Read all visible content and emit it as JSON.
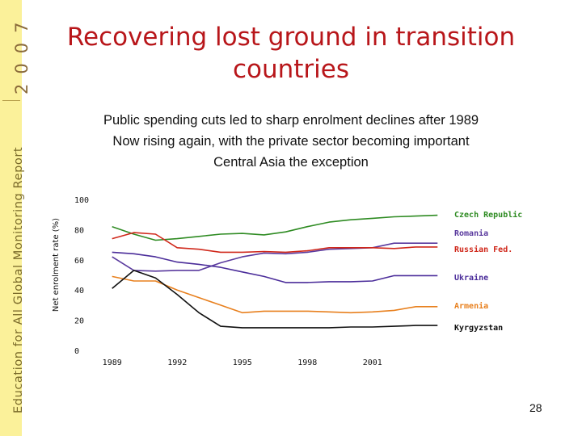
{
  "sidebar": {
    "report_name": "Education for All Global Monitoring Report",
    "year": "2007"
  },
  "slide": {
    "title": "Recovering lost ground in transition countries",
    "bullets": [
      "Public spending cuts led to sharp enrolment declines after 1989",
      "Now rising again, with the private sector becoming important",
      "Central Asia the exception"
    ],
    "page_number": "28"
  },
  "chart_data": {
    "type": "line",
    "ylabel": "Net enrolment rate (%)",
    "ylim": [
      0,
      100
    ],
    "yticks": [
      0,
      20,
      40,
      60,
      80,
      100
    ],
    "xlim": [
      1988.6,
      2004.4
    ],
    "xticks": [
      1989,
      1992,
      1995,
      1998,
      2001
    ],
    "grid": false,
    "legend": "series labels at right end of lines",
    "series": [
      {
        "name": "Czech Republic",
        "color": "#2e8b22",
        "x": [
          1989,
          1990,
          1991,
          1992,
          1993,
          1994,
          1995,
          1996,
          1997,
          1998,
          1999,
          2000,
          2001,
          2002,
          2003,
          2004
        ],
        "y": [
          82,
          77,
          73,
          74,
          75.5,
          77,
          77.5,
          76.5,
          78.5,
          82,
          85,
          86.5,
          87.5,
          88.5,
          89,
          89.5
        ]
      },
      {
        "name": "Romania",
        "color": "#5a3a9e",
        "x": [
          1989,
          1990,
          1991,
          1992,
          1993,
          1994,
          1995,
          1996,
          1997,
          1998,
          1999,
          2000,
          2001,
          2002,
          2003,
          2004
        ],
        "y": [
          62,
          53,
          52.5,
          53,
          53,
          58,
          62,
          64.5,
          64,
          65,
          67,
          67.5,
          68,
          71,
          71,
          71
        ]
      },
      {
        "name": "Russian Fed.",
        "color": "#d0281b",
        "x": [
          1989,
          1990,
          1991,
          1992,
          1993,
          1994,
          1995,
          1996,
          1997,
          1998,
          1999,
          2000,
          2001,
          2002,
          2003,
          2004
        ],
        "y": [
          74,
          78,
          77,
          68,
          67,
          65,
          65,
          65.5,
          65,
          66,
          68,
          68,
          68,
          67.5,
          68.5,
          68.5
        ]
      },
      {
        "name": "Ukraine",
        "color": "#4b2d9a",
        "x": [
          1989,
          1990,
          1991,
          1992,
          1993,
          1994,
          1995,
          1996,
          1997,
          1998,
          1999,
          2000,
          2001,
          2002,
          2003,
          2004
        ],
        "y": [
          65,
          64,
          62,
          58.5,
          57,
          55,
          52,
          49,
          45,
          45,
          45.5,
          45.5,
          46,
          49.5,
          49.5,
          49.5
        ]
      },
      {
        "name": "Armenia",
        "color": "#e8801e",
        "x": [
          1989,
          1990,
          1991,
          1992,
          1993,
          1994,
          1995,
          1996,
          1997,
          1998,
          1999,
          2000,
          2001,
          2002,
          2003,
          2004
        ],
        "y": [
          49,
          46,
          46,
          40,
          35,
          30,
          25,
          26,
          26,
          26,
          25.5,
          25,
          25.5,
          26.5,
          29,
          29
        ]
      },
      {
        "name": "Kyrgyzstan",
        "color": "#111111",
        "x": [
          1989,
          1990,
          1991,
          1992,
          1993,
          1994,
          1995,
          1996,
          1997,
          1998,
          1999,
          2000,
          2001,
          2002,
          2003,
          2004
        ],
        "y": [
          41,
          53,
          48,
          37,
          25,
          16,
          15,
          15,
          15,
          15,
          15,
          15.5,
          15.5,
          16,
          16.5,
          16.5
        ]
      }
    ]
  }
}
